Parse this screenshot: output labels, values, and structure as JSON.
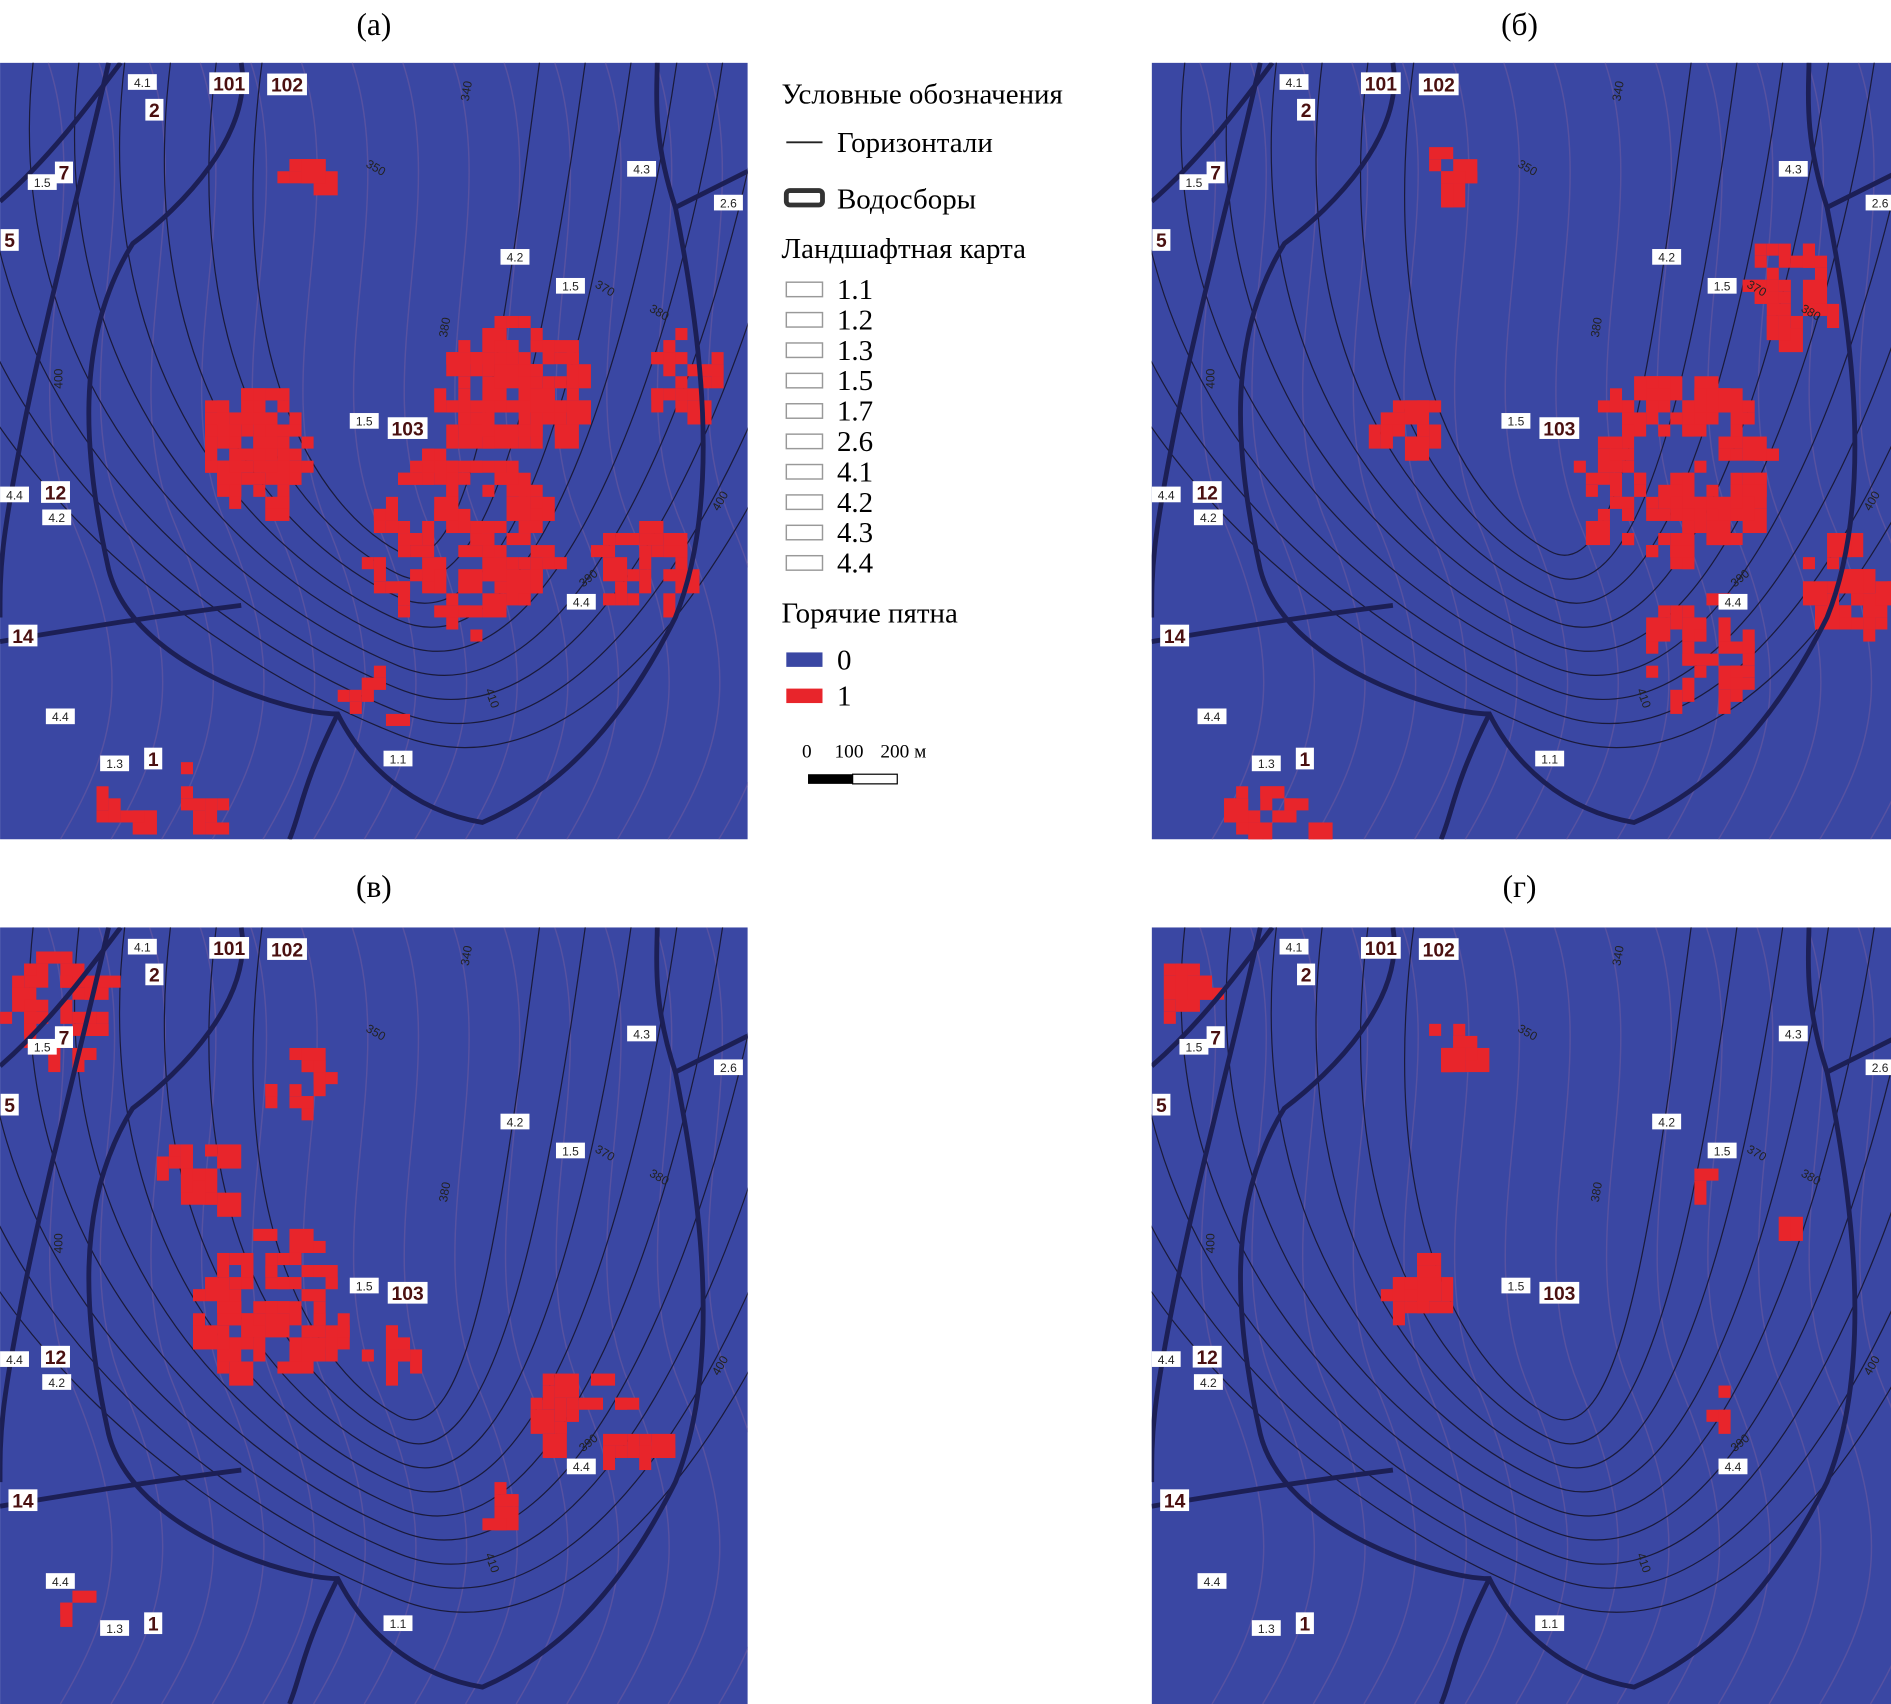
{
  "panels": [
    {
      "label": "(а)"
    },
    {
      "label": "(б)"
    },
    {
      "label": "(в)"
    },
    {
      "label": "(г)"
    }
  ],
  "legend": {
    "title": "Условные обозначения",
    "contours": "Горизонтали",
    "catchments": "Водосборы",
    "landscape_title": "Ландшафтная карта",
    "landscape_items": [
      "1.1",
      "1.2",
      "1.3",
      "1.5",
      "1.7",
      "2.6",
      "4.1",
      "4.2",
      "4.3",
      "4.4"
    ],
    "hotspots_title": "Горячие пятна",
    "hotspot_items": [
      {
        "label": "0",
        "color": "#3a47a3"
      },
      {
        "label": "1",
        "color": "#e8252b"
      }
    ],
    "scale": [
      "0",
      "100",
      "200 м"
    ]
  },
  "map_labels": [
    "4.1",
    "101",
    "102",
    "2",
    "7",
    "1.5",
    "5",
    "4.3",
    "2.6",
    "4.2",
    "1.5",
    "1.5",
    "103",
    "4.4",
    "12",
    "4.2",
    "4.4",
    "14",
    "4.4",
    "1.3",
    "1",
    "1.1"
  ],
  "contour_labels": [
    "340",
    "350",
    "370",
    "380",
    "380",
    "400",
    "390",
    "410",
    "400"
  ]
}
